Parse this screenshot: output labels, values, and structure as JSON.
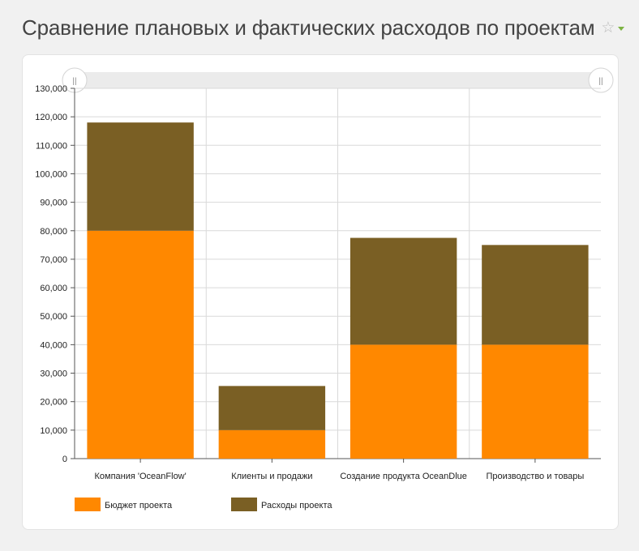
{
  "header": {
    "title": "Сравнение плановых и фактических расходов по проектам",
    "star_glyph": "☆"
  },
  "colors": {
    "budget": "#ff8800",
    "expenses": "#7a5f24",
    "grid": "#d9d9d9",
    "scroll_track": "#ebebeb"
  },
  "chart_data": {
    "type": "bar",
    "stacked": true,
    "title": "Сравнение плановых и фактических расходов по проектам",
    "categories": [
      "Компания 'OceanFlow'",
      "Клиенты и продажи",
      "Создание продукта OceanDlue",
      "Производство и товары"
    ],
    "series": [
      {
        "name": "Бюджет проекта",
        "values": [
          80000,
          10000,
          40000,
          40000
        ]
      },
      {
        "name": "Расходы проекта",
        "values": [
          38000,
          15500,
          37500,
          35000
        ]
      }
    ],
    "ylim": [
      0,
      130000
    ],
    "yticks": [
      0,
      10000,
      20000,
      30000,
      40000,
      50000,
      60000,
      70000,
      80000,
      90000,
      100000,
      110000,
      120000,
      130000
    ],
    "ytick_labels": [
      "0",
      "10,000",
      "20,000",
      "30,000",
      "40,000",
      "50,000",
      "60,000",
      "70,000",
      "80,000",
      "90,000",
      "100,000",
      "110,000",
      "120,000",
      "130,000"
    ],
    "xlabel": "",
    "ylabel": "",
    "grid": true,
    "legend_position": "bottom-left"
  },
  "scroll_handle_glyph": "||"
}
